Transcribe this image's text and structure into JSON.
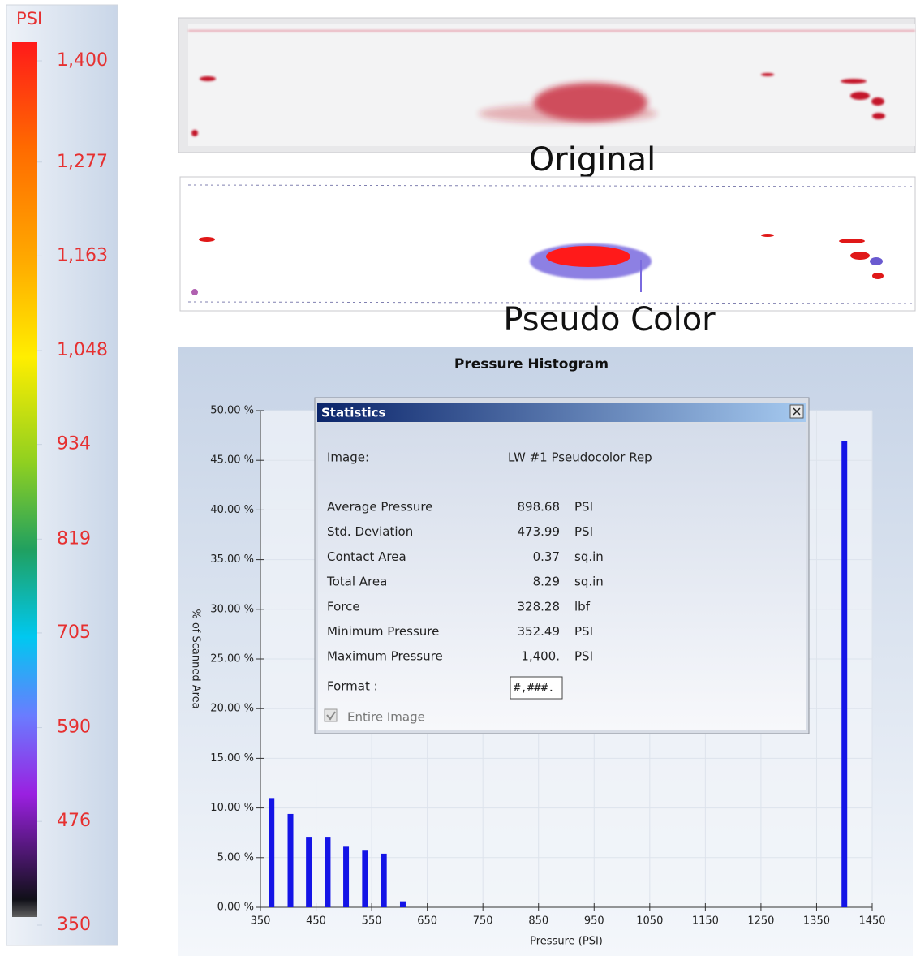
{
  "colorbar": {
    "unit": "PSI",
    "lim": [
      350,
      1400
    ],
    "ticks": [
      {
        "value": 1400,
        "label": "1,400"
      },
      {
        "value": 1277,
        "label": "1,277"
      },
      {
        "value": 1163,
        "label": "1,163"
      },
      {
        "value": 1048,
        "label": "1,048"
      },
      934,
      819,
      705,
      590,
      476,
      350
    ]
  },
  "images": [
    {
      "caption": "Original"
    },
    {
      "caption": "Pseudo Color"
    }
  ],
  "chart_data": {
    "type": "bar",
    "title": "Pressure Histogram",
    "xlabel": "Pressure (PSI)",
    "ylabel": "% of Scanned Area",
    "x": [
      370,
      404,
      437,
      471,
      504,
      538,
      572,
      606,
      1400
    ],
    "values": [
      11.0,
      9.4,
      7.1,
      7.1,
      6.1,
      5.7,
      5.4,
      0.6,
      46.9
    ],
    "color": "#1414e6",
    "xlim": [
      350,
      1450
    ],
    "xticks": [
      350,
      450,
      550,
      650,
      750,
      850,
      950,
      1050,
      1150,
      1250,
      1350,
      1450
    ],
    "ylim": [
      0,
      50
    ],
    "yticks": [
      {
        "value": 0,
        "label": "0.00 %"
      },
      {
        "value": 5,
        "label": "5.00 %"
      },
      {
        "value": 10,
        "label": "10.00 %"
      },
      {
        "value": 15,
        "label": "15.00 %"
      },
      {
        "value": 20,
        "label": "20.00 %"
      },
      {
        "value": 25,
        "label": "25.00 %"
      },
      {
        "value": 30,
        "label": "30.00 %"
      },
      {
        "value": 35,
        "label": "35.00 %"
      },
      {
        "value": 40,
        "label": "40.00 %"
      },
      {
        "value": 45,
        "label": "45.00 %"
      },
      {
        "value": 50,
        "label": "50.00 %"
      }
    ],
    "grid": true
  },
  "statistics": {
    "title": "Statistics",
    "image_label": "Image:",
    "image_name": "LW #1 Pseudocolor Rep",
    "rows": [
      {
        "label": "Average Pressure",
        "value": 898.68,
        "unit": "PSI"
      },
      {
        "label": "Std. Deviation",
        "value": 473.99,
        "unit": "PSI"
      },
      {
        "label": "Contact Area",
        "value": 0.37,
        "unit": "sq.in"
      },
      {
        "label": "Total Area",
        "value": 8.29,
        "unit": "sq.in"
      },
      {
        "label": "Force",
        "value": 328.28,
        "unit": "lbf"
      },
      {
        "label": "Minimum Pressure",
        "value": 352.49,
        "unit": "PSI"
      },
      {
        "label": "Maximum Pressure",
        "value": "1,400.",
        "unit": "PSI"
      }
    ],
    "format_label": "Format :",
    "format_value": "#,###.",
    "checkbox_label": "Entire Image"
  }
}
